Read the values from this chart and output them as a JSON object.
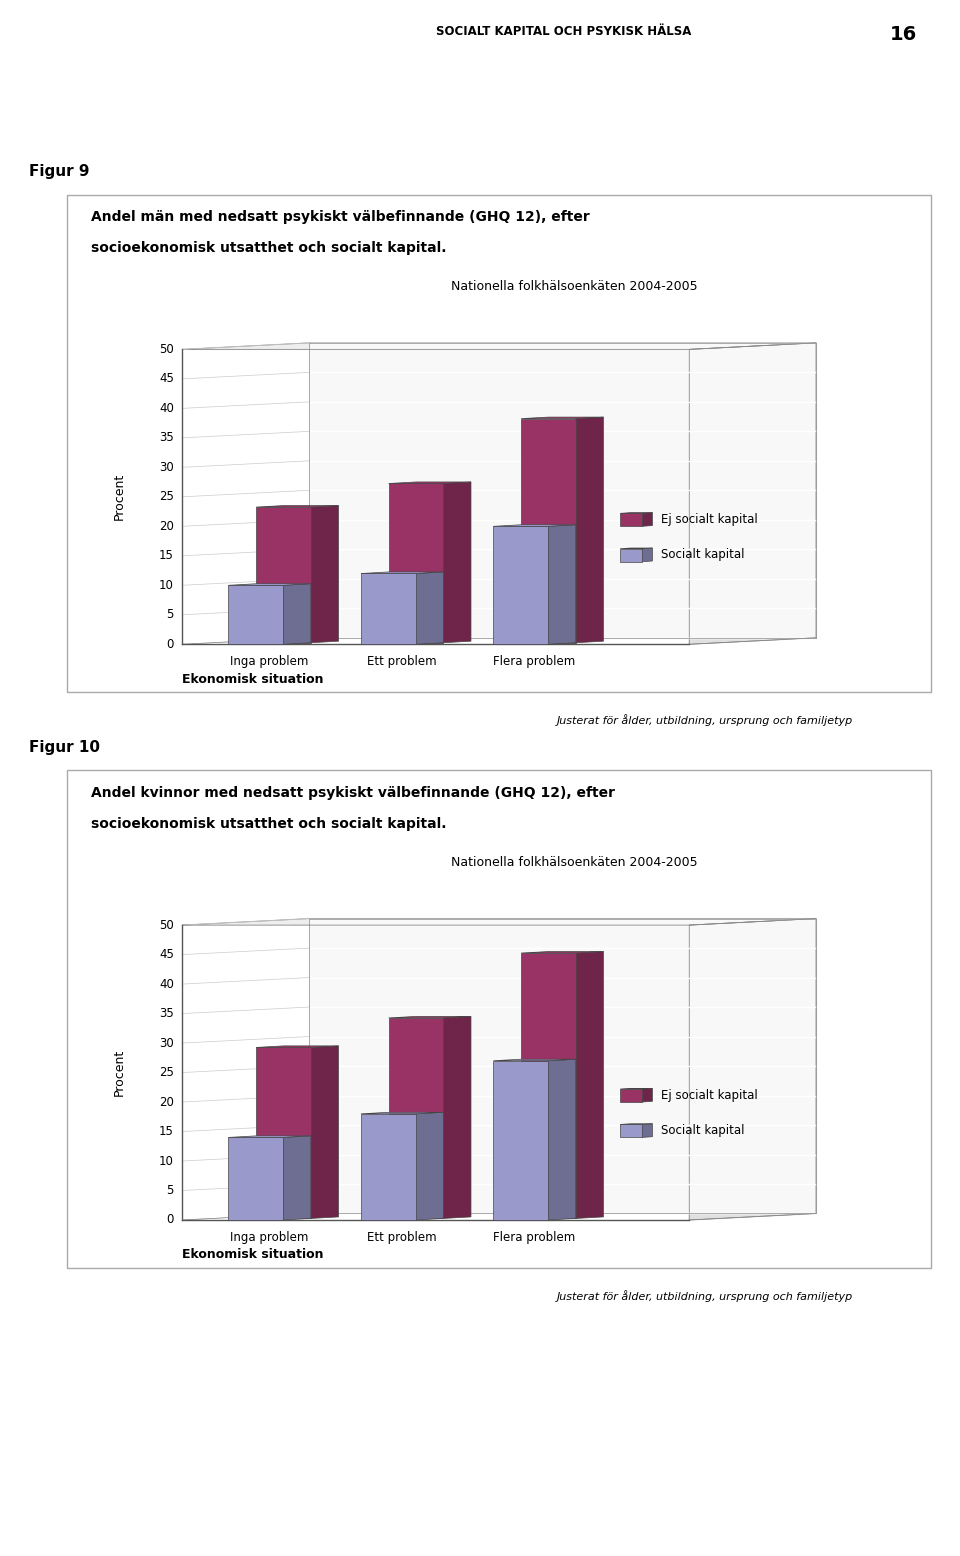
{
  "page_header": "SOCIALT KAPITAL OCH PSYKISK HÄLSA",
  "page_number": "16",
  "fig9_label": "Figur 9",
  "fig9_title_line1": "Andel män med nedsatt psykiskt välbefinnande (GHQ 12), efter",
  "fig9_title_line2": "socioekonomisk utsatthet och socialt kapital.",
  "fig10_label": "Figur 10",
  "fig10_title_line1": "Andel kvinnor med nedsatt psykiskt välbefinnande (GHQ 12), efter",
  "fig10_title_line2": "socioekonomisk utsatthet och socialt kapital.",
  "subtitle": "Nationella folkhälsoenkäten 2004-2005",
  "xlabel": "Ekonomisk situation",
  "ylabel": "Procent",
  "categories": [
    "Inga problem",
    "Ett problem",
    "Flera problem"
  ],
  "legend_socialt": "Socialt kapital",
  "legend_ej_socialt": "Ej socialt kapital",
  "footnote": "Justerat för ålder, utbildning, ursprung och familjetyp",
  "fig9_socialt": [
    10,
    12,
    20
  ],
  "fig9_ej_socialt": [
    23,
    27,
    38
  ],
  "fig10_socialt": [
    14,
    18,
    27
  ],
  "fig10_ej_socialt": [
    29,
    34,
    45
  ],
  "yticks": [
    0,
    5,
    10,
    15,
    20,
    25,
    30,
    35,
    40,
    45,
    50
  ],
  "color_socialt": "#9999CC",
  "color_ej_socialt": "#993366",
  "bg_color": "#ffffff"
}
